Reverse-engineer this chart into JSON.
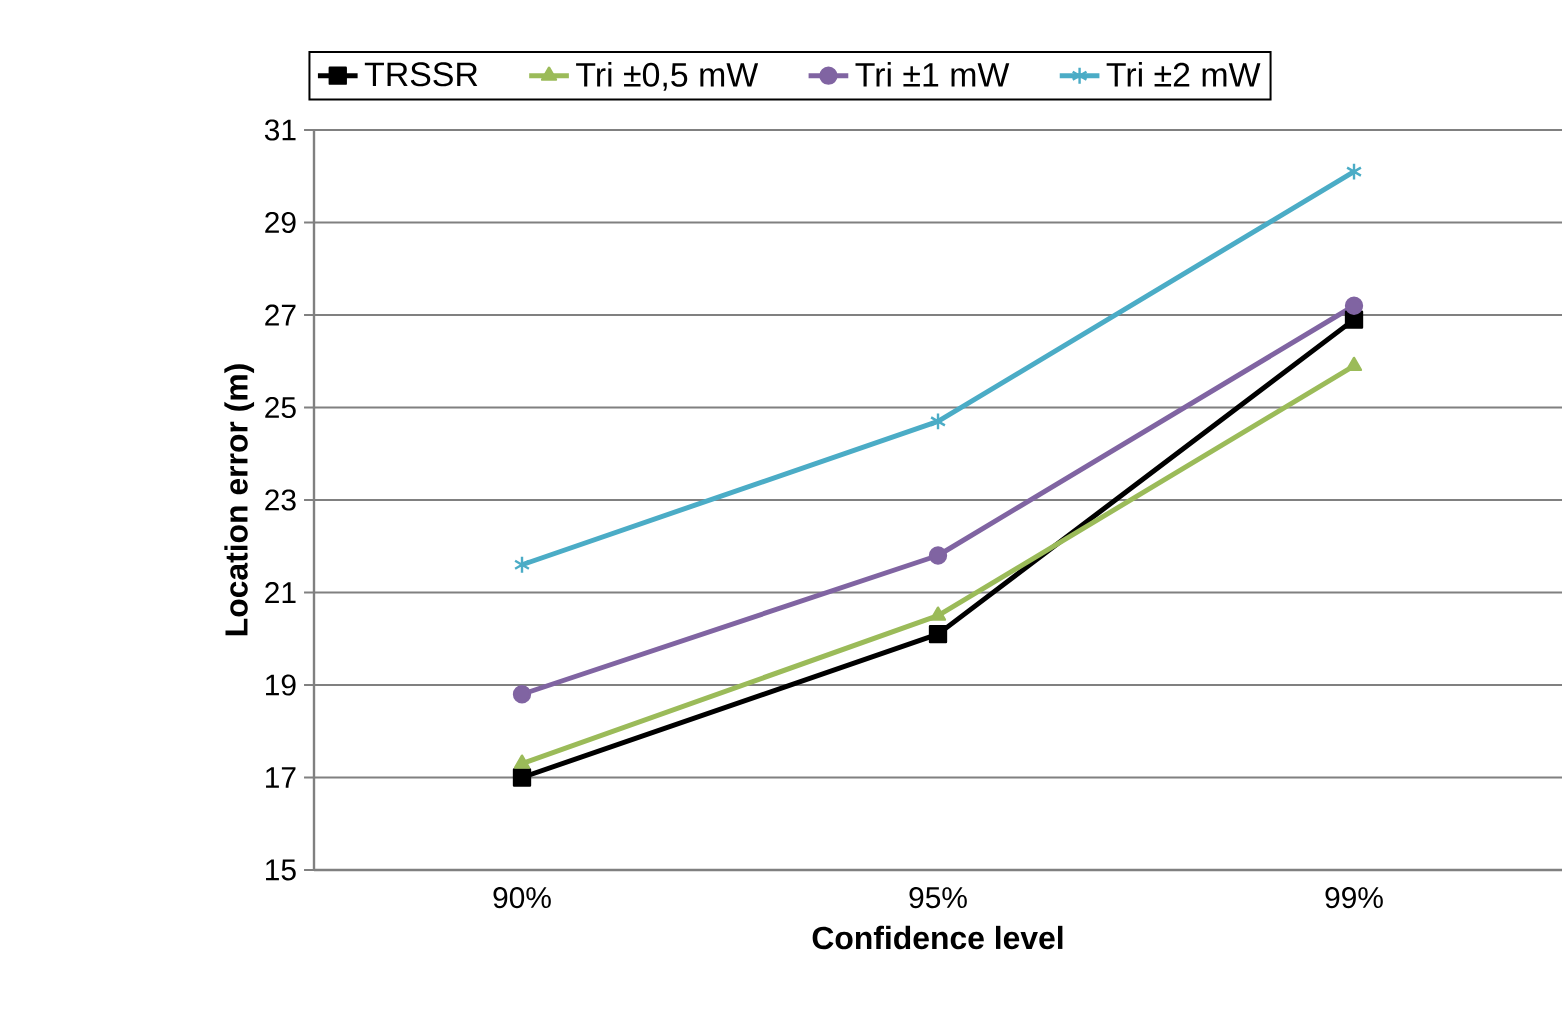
{
  "chart_data": {
    "type": "line",
    "xlabel": "Confidence level",
    "ylabel": "Location error (m)",
    "categories": [
      "90%",
      "95%",
      "99%"
    ],
    "series": [
      {
        "name": "TRSSR",
        "color": "#000000",
        "marker": "square",
        "values": [
          17.0,
          20.1,
          26.9
        ]
      },
      {
        "name": "Tri ±0,5 mW",
        "color": "#9bbb59",
        "marker": "triangle",
        "values": [
          17.3,
          20.5,
          25.9
        ]
      },
      {
        "name": "Tri ±1 mW",
        "color": "#8064a2",
        "marker": "circle",
        "values": [
          18.8,
          21.8,
          27.2
        ]
      },
      {
        "name": "Tri ±2 mW",
        "color": "#4bacc6",
        "marker": "cross",
        "values": [
          21.6,
          24.7,
          30.1
        ]
      }
    ],
    "ylim": [
      15,
      31
    ],
    "yticks": [
      15,
      17,
      19,
      21,
      23,
      25,
      27,
      29,
      31
    ],
    "grid": "y",
    "legend": "top",
    "line_style": "solid"
  }
}
